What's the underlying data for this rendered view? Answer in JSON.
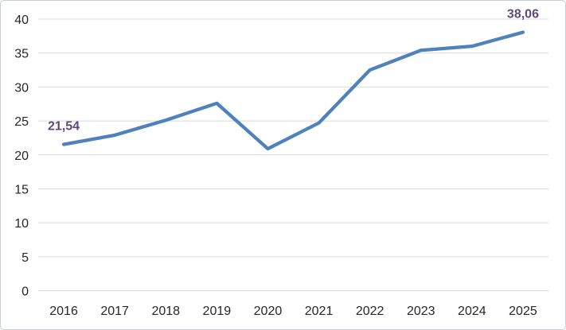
{
  "chart": {
    "colors": {
      "line": "#4F81BD",
      "gridline": "#D9D9D9",
      "axis_text": "#262626",
      "data_label": "#5F497A",
      "border": "#C9CED4",
      "background": "#FFFFFF"
    }
  },
  "chart_data": {
    "type": "line",
    "categories": [
      "2016",
      "2017",
      "2018",
      "2019",
      "2020",
      "2021",
      "2022",
      "2023",
      "2024",
      "2025"
    ],
    "values": [
      21.54,
      22.9,
      25.1,
      27.6,
      20.9,
      24.7,
      32.5,
      35.4,
      36.0,
      38.06
    ],
    "yticks": [
      0,
      5,
      10,
      15,
      20,
      25,
      30,
      35,
      40
    ],
    "ylim": [
      0,
      40
    ],
    "xlabel": "",
    "ylabel": "",
    "title": "",
    "grid": true,
    "legend": false,
    "decimal_separator": ",",
    "data_labels": [
      {
        "index": 0,
        "text": "21,54"
      },
      {
        "index": 9,
        "text": "38,06"
      }
    ]
  }
}
